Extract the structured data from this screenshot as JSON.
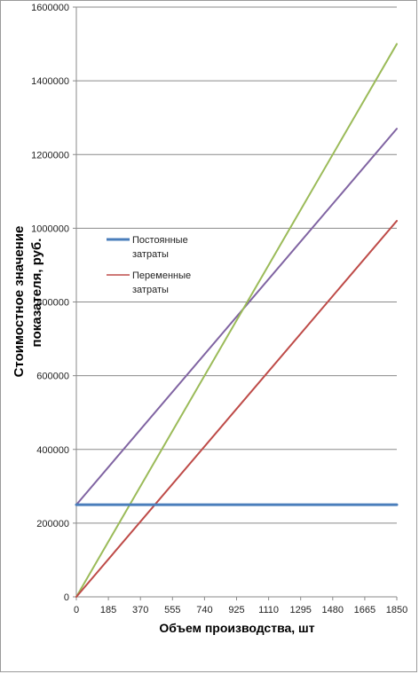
{
  "chart_data": {
    "type": "line",
    "title": "",
    "xlabel": "Объем производства, шт",
    "ylabel_lines": [
      "Стоимостное  значение",
      "показателя, руб."
    ],
    "x_ticks": [
      "0",
      "185",
      "370",
      "555",
      "740",
      "925",
      "1110",
      "1295",
      "1480",
      "1665",
      "1850"
    ],
    "y_ticks": [
      "0",
      "200000",
      "400000",
      "600000",
      "800000",
      "1000000",
      "1200000",
      "1400000",
      "1600000"
    ],
    "xlim": [
      0,
      1850
    ],
    "ylim": [
      0,
      1600000
    ],
    "grid": "horizontal",
    "legend_position": "center-left",
    "series": [
      {
        "name": "Постоянные\nзатраты",
        "legend_lines": [
          "Постоянные",
          "затраты"
        ],
        "color": "#4a7ebb",
        "x": [
          0,
          1850
        ],
        "y": [
          250000,
          250000
        ]
      },
      {
        "name": "Переменные\nзатраты",
        "legend_lines": [
          "Переменные",
          "затраты"
        ],
        "color": "#be4b48",
        "x": [
          0,
          1850
        ],
        "y": [
          0,
          1020000
        ]
      },
      {
        "color": "#8064a2",
        "x": [
          0,
          1850
        ],
        "y": [
          250000,
          1270000
        ]
      },
      {
        "color": "#9bbb59",
        "x": [
          0,
          1850
        ],
        "y": [
          0,
          1500000
        ]
      }
    ]
  }
}
